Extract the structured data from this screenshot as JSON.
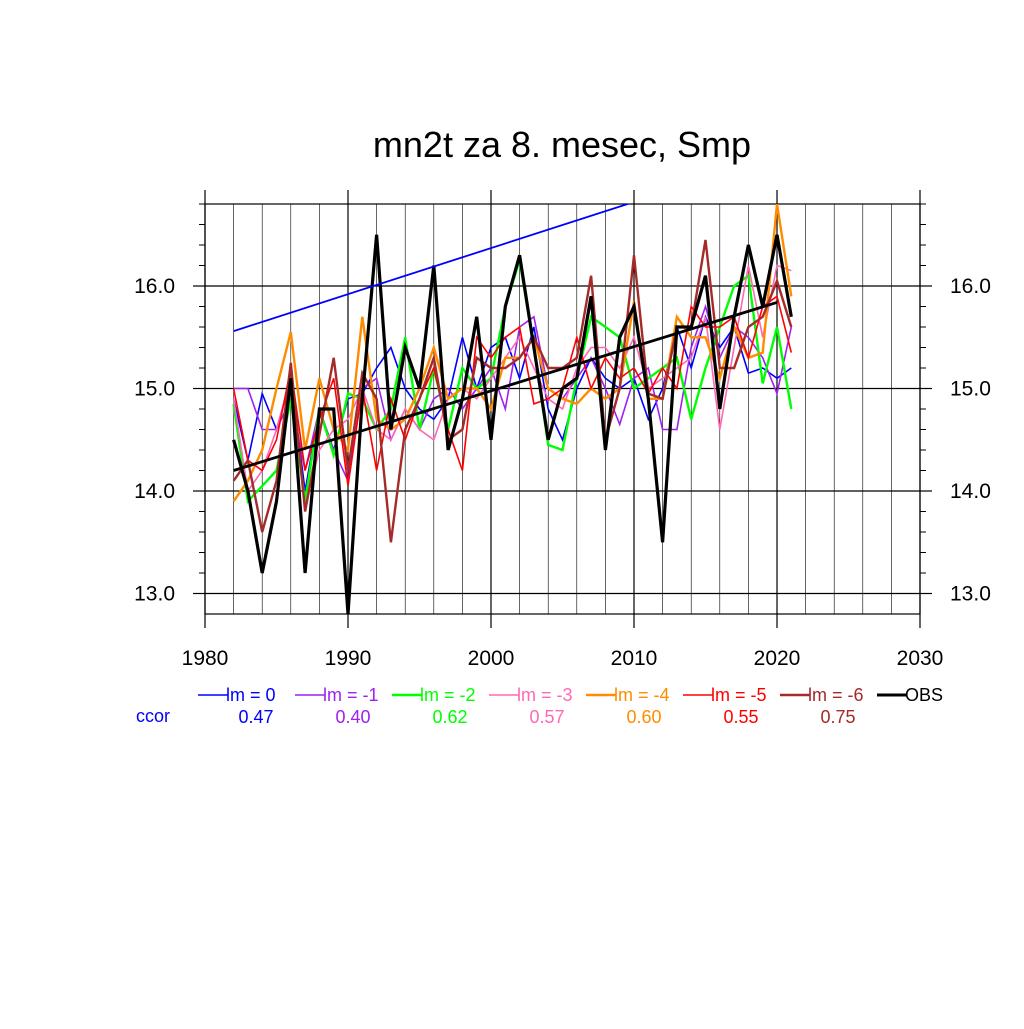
{
  "chart_data": {
    "type": "line",
    "title": "mn2t za 8. mesec, Smp",
    "xlabel": "",
    "ylabel": "",
    "xlim": [
      1980,
      2030
    ],
    "ylim": [
      12.8,
      16.8
    ],
    "x_ticks": [
      1980,
      1990,
      2000,
      2010,
      2020,
      2030
    ],
    "x_tick_labels": [
      "1980",
      "1990",
      "2000",
      "2010",
      "2020",
      "2030"
    ],
    "y_ticks": [
      13.0,
      14.0,
      15.0,
      16.0
    ],
    "y_tick_labels": [
      "13.0",
      "14.0",
      "15.0",
      "16.0"
    ],
    "grid": true,
    "legend_position": "bottom",
    "ccor_label": "ccor",
    "ccor_color": "#0000ff",
    "x": [
      1982,
      1983,
      1984,
      1985,
      1986,
      1987,
      1988,
      1989,
      1990,
      1991,
      1992,
      1993,
      1994,
      1995,
      1996,
      1997,
      1998,
      1999,
      2000,
      2001,
      2002,
      2003,
      2004,
      2005,
      2006,
      2007,
      2008,
      2009,
      2010,
      2011,
      2012,
      2013,
      2014,
      2015,
      2016,
      2017,
      2018,
      2019,
      2020,
      2021
    ],
    "series": [
      {
        "name": "lm = 0",
        "color": "#0000ff",
        "width": 1.6,
        "ccor": "0.47",
        "values": [
          14.9,
          14.3,
          14.95,
          14.6,
          15.1,
          14.0,
          14.8,
          14.4,
          14.9,
          14.95,
          15.2,
          15.4,
          15.0,
          14.8,
          14.7,
          14.9,
          15.5,
          15.0,
          15.4,
          15.5,
          15.1,
          15.6,
          14.8,
          14.5,
          15.0,
          15.3,
          15.1,
          15.0,
          15.1,
          14.7,
          15.0,
          15.6,
          15.2,
          15.7,
          15.4,
          15.6,
          15.15,
          15.2,
          15.1,
          15.2
        ]
      },
      {
        "name": "lm = -1",
        "color": "#a020f0",
        "width": 1.6,
        "ccor": "0.40",
        "values": [
          15.0,
          15.0,
          14.6,
          14.6,
          14.9,
          14.2,
          14.8,
          14.4,
          14.1,
          15.0,
          15.1,
          14.5,
          14.8,
          14.6,
          14.9,
          15.0,
          14.8,
          15.0,
          15.2,
          14.8,
          15.6,
          15.7,
          15.0,
          14.9,
          15.1,
          15.3,
          15.0,
          14.65,
          15.1,
          15.2,
          14.6,
          14.6,
          15.4,
          15.8,
          15.3,
          15.6,
          15.5,
          15.3,
          14.95,
          15.6
        ]
      },
      {
        "name": "lm = -2",
        "color": "#00ff00",
        "width": 2.4,
        "ccor": "0.62",
        "values": [
          14.85,
          13.9,
          14.05,
          14.2,
          14.9,
          13.9,
          14.8,
          14.35,
          14.95,
          14.9,
          14.6,
          14.8,
          15.5,
          14.6,
          15.2,
          14.6,
          15.2,
          15.0,
          15.1,
          15.8,
          16.25,
          15.4,
          14.45,
          14.4,
          15.1,
          15.7,
          15.6,
          15.5,
          15.0,
          15.1,
          15.2,
          15.3,
          14.7,
          15.2,
          15.6,
          16.0,
          16.1,
          15.05,
          15.6,
          14.8
        ]
      },
      {
        "name": "lm = -3",
        "color": "#ff69b4",
        "width": 1.6,
        "ccor": "0.57",
        "values": [
          14.9,
          14.0,
          14.2,
          14.6,
          15.1,
          13.85,
          14.4,
          14.6,
          14.7,
          15.0,
          14.6,
          14.5,
          14.8,
          14.6,
          14.5,
          14.9,
          15.0,
          14.9,
          15.1,
          15.3,
          15.5,
          15.2,
          14.9,
          14.8,
          15.2,
          15.4,
          15.4,
          15.2,
          15.5,
          15.0,
          15.1,
          15.2,
          15.3,
          15.7,
          14.6,
          15.4,
          16.2,
          15.5,
          16.2,
          16.15
        ]
      },
      {
        "name": "lm = -4",
        "color": "#ff8c00",
        "width": 2.4,
        "ccor": "0.60",
        "values": [
          13.9,
          14.1,
          14.4,
          15.0,
          15.55,
          14.4,
          15.1,
          14.6,
          14.4,
          15.7,
          14.7,
          14.6,
          14.7,
          15.0,
          15.4,
          14.9,
          15.0,
          15.0,
          14.8,
          15.3,
          15.3,
          15.5,
          15.0,
          14.9,
          14.85,
          15.0,
          14.9,
          15.0,
          15.85,
          14.9,
          14.9,
          15.7,
          15.5,
          15.5,
          15.1,
          15.6,
          15.3,
          15.35,
          16.8,
          15.9
        ]
      },
      {
        "name": "lm = -5",
        "color": "#ff0000",
        "width": 1.6,
        "ccor": "0.55",
        "values": [
          15.0,
          14.3,
          14.2,
          14.5,
          15.2,
          14.2,
          14.7,
          15.1,
          14.05,
          15.0,
          14.2,
          14.9,
          14.5,
          14.9,
          15.2,
          14.6,
          14.2,
          15.5,
          15.3,
          15.5,
          15.6,
          14.85,
          14.9,
          15.0,
          15.5,
          15.0,
          15.3,
          15.1,
          15.2,
          14.95,
          15.2,
          15.0,
          15.8,
          15.6,
          15.6,
          15.7,
          15.3,
          15.8,
          15.9,
          15.35
        ]
      },
      {
        "name": "lm = -6",
        "color": "#a52a2a",
        "width": 2.4,
        "ccor": "0.75",
        "values": [
          14.1,
          14.3,
          13.6,
          14.1,
          15.25,
          13.8,
          14.55,
          15.3,
          14.2,
          15.15,
          14.9,
          13.5,
          14.6,
          14.9,
          15.3,
          14.5,
          14.6,
          15.3,
          15.2,
          15.2,
          15.3,
          15.5,
          15.2,
          15.2,
          15.3,
          16.1,
          14.5,
          15.0,
          16.3,
          14.95,
          14.9,
          15.6,
          15.6,
          16.45,
          15.2,
          15.2,
          15.6,
          15.7,
          16.05,
          15.6
        ]
      },
      {
        "name": "OBS",
        "color": "#000000",
        "width": 3.2,
        "ccor": "",
        "values": [
          14.5,
          14.0,
          13.2,
          13.9,
          15.1,
          13.2,
          14.8,
          14.8,
          12.8,
          14.9,
          16.5,
          14.6,
          15.4,
          15.0,
          16.2,
          14.4,
          14.9,
          15.7,
          14.5,
          15.8,
          16.3,
          15.4,
          14.5,
          15.0,
          15.1,
          15.9,
          14.4,
          15.5,
          15.8,
          14.9,
          13.5,
          15.6,
          15.6,
          16.1,
          14.8,
          15.7,
          16.4,
          15.8,
          16.5,
          15.7
        ]
      }
    ],
    "trend_lines": [
      {
        "name": "lm = 0 trend",
        "color": "#0000ff",
        "width": 1.8,
        "x": [
          1982,
          2010
        ],
        "y": [
          15.56,
          16.82
        ]
      },
      {
        "name": "OBS trend",
        "color": "#000000",
        "width": 2.8,
        "x": [
          1982,
          2020
        ],
        "y": [
          14.2,
          15.84
        ]
      }
    ]
  }
}
